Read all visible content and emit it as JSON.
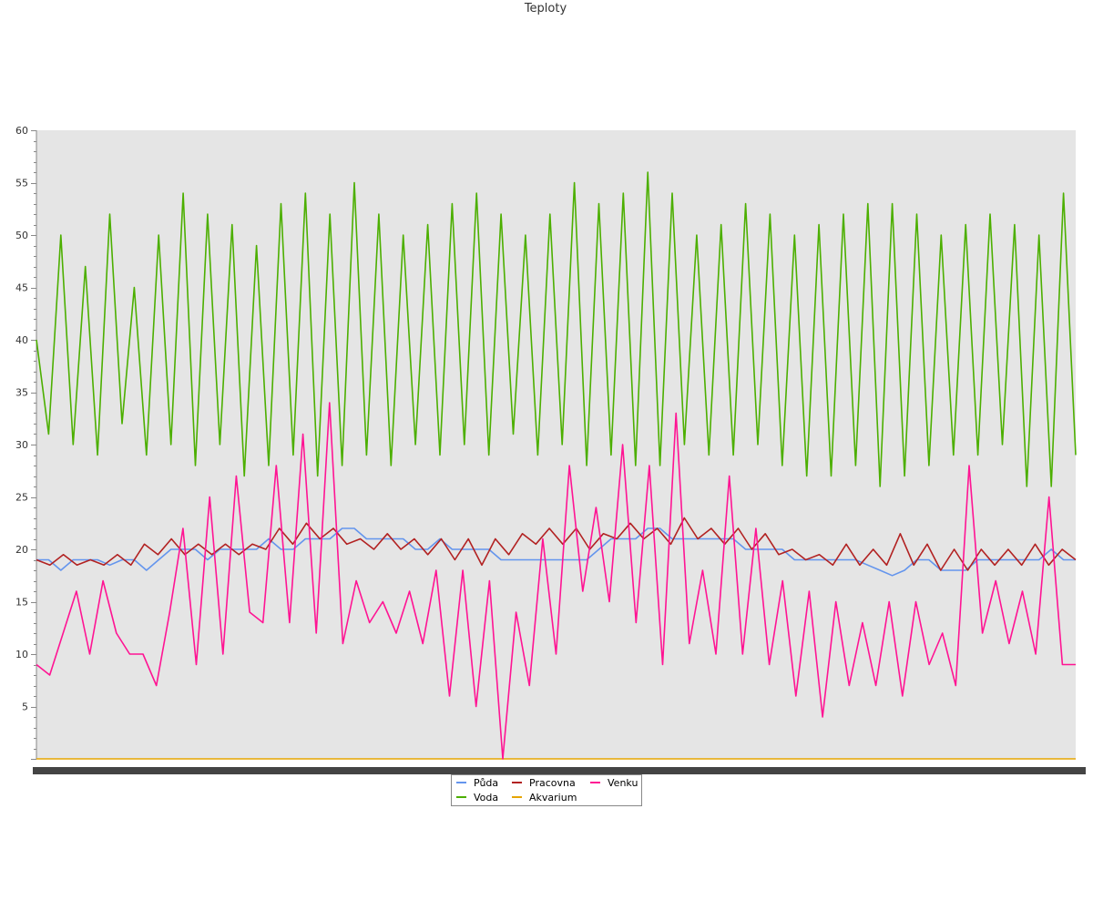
{
  "chart_data": {
    "type": "line",
    "title": "Teploty",
    "xlabel": "",
    "ylabel": "",
    "ylim": [
      0,
      60
    ],
    "yticks": [
      5,
      10,
      15,
      20,
      25,
      30,
      35,
      40,
      45,
      50,
      55,
      60
    ],
    "grid": false,
    "background": "#e5e5e5",
    "legend_position": "bottom",
    "series": [
      {
        "name": "Půda",
        "color": "#6495ed",
        "values": [
          19,
          19,
          18,
          19,
          19,
          19,
          18.5,
          19,
          19,
          18,
          19,
          20,
          20,
          20,
          19,
          20,
          20,
          20,
          20,
          21,
          20,
          20,
          21,
          21,
          21,
          22,
          22,
          21,
          21,
          21,
          21,
          20,
          20,
          21,
          20,
          20,
          20,
          20,
          19,
          19,
          19,
          19,
          19,
          19,
          19,
          19,
          20,
          21,
          21,
          21,
          22,
          22,
          21,
          21,
          21,
          21,
          21,
          21,
          20,
          20,
          20,
          20,
          19,
          19,
          19,
          19,
          19,
          19,
          18.5,
          18,
          17.5,
          18,
          19,
          19,
          18,
          18,
          18,
          19,
          19,
          19,
          19,
          19,
          19,
          20,
          19,
          19
        ]
      },
      {
        "name": "Voda",
        "color": "#4caf00",
        "values": [
          40,
          31,
          50,
          30,
          47,
          29,
          52,
          32,
          45,
          29,
          50,
          30,
          54,
          28,
          52,
          30,
          51,
          27,
          49,
          28,
          53,
          29,
          54,
          27,
          52,
          28,
          55,
          29,
          52,
          28,
          50,
          30,
          51,
          29,
          53,
          30,
          54,
          29,
          52,
          31,
          50,
          29,
          52,
          30,
          55,
          28,
          53,
          29,
          54,
          28,
          56,
          28,
          54,
          30,
          50,
          29,
          51,
          29,
          53,
          30,
          52,
          28,
          50,
          27,
          51,
          27,
          52,
          28,
          53,
          26,
          53,
          27,
          52,
          28,
          50,
          29,
          51,
          29,
          52,
          30,
          51,
          26,
          50,
          26,
          54,
          29
        ]
      },
      {
        "name": "Pracovna",
        "color": "#b22222",
        "values": [
          19,
          18.5,
          19.5,
          18.5,
          19,
          18.5,
          19.5,
          18.5,
          20.5,
          19.5,
          21,
          19.5,
          20.5,
          19.5,
          20.5,
          19.5,
          20.5,
          20,
          22,
          20.5,
          22.5,
          21,
          22,
          20.5,
          21,
          20,
          21.5,
          20,
          21,
          19.5,
          21,
          19,
          21,
          18.5,
          21,
          19.5,
          21.5,
          20.5,
          22,
          20.5,
          22,
          20,
          21.5,
          21,
          22.5,
          21,
          22,
          20.5,
          23,
          21,
          22,
          20.5,
          22,
          20,
          21.5,
          19.5,
          20,
          19,
          19.5,
          18.5,
          20.5,
          18.5,
          20,
          18.5,
          21.5,
          18.5,
          20.5,
          18,
          20,
          18,
          20,
          18.5,
          20,
          18.5,
          20.5,
          18.5,
          20,
          19
        ]
      },
      {
        "name": "Akvarium",
        "color": "#e6a500",
        "values": [
          0,
          0,
          0,
          0,
          0,
          0,
          0,
          0,
          0,
          0,
          0,
          0,
          0,
          0,
          0,
          0,
          0,
          0,
          0,
          0
        ]
      },
      {
        "name": "Venku",
        "color": "#ff1493",
        "values": [
          9,
          8,
          12,
          16,
          10,
          17,
          12,
          10,
          10,
          7,
          14,
          22,
          9,
          25,
          10,
          27,
          14,
          13,
          28,
          13,
          31,
          12,
          34,
          11,
          17,
          13,
          15,
          12,
          16,
          11,
          18,
          6,
          18,
          5,
          17,
          0,
          14,
          7,
          21,
          10,
          28,
          16,
          24,
          15,
          30,
          13,
          28,
          9,
          33,
          11,
          18,
          10,
          27,
          10,
          22,
          9,
          17,
          6,
          16,
          4,
          15,
          7,
          13,
          7,
          15,
          6,
          15,
          9,
          12,
          7,
          28,
          12,
          17,
          11,
          16,
          10,
          25,
          9,
          9
        ]
      }
    ],
    "legend": [
      "Půda",
      "Voda",
      "Pracovna",
      "Akvarium",
      "Venku"
    ]
  }
}
